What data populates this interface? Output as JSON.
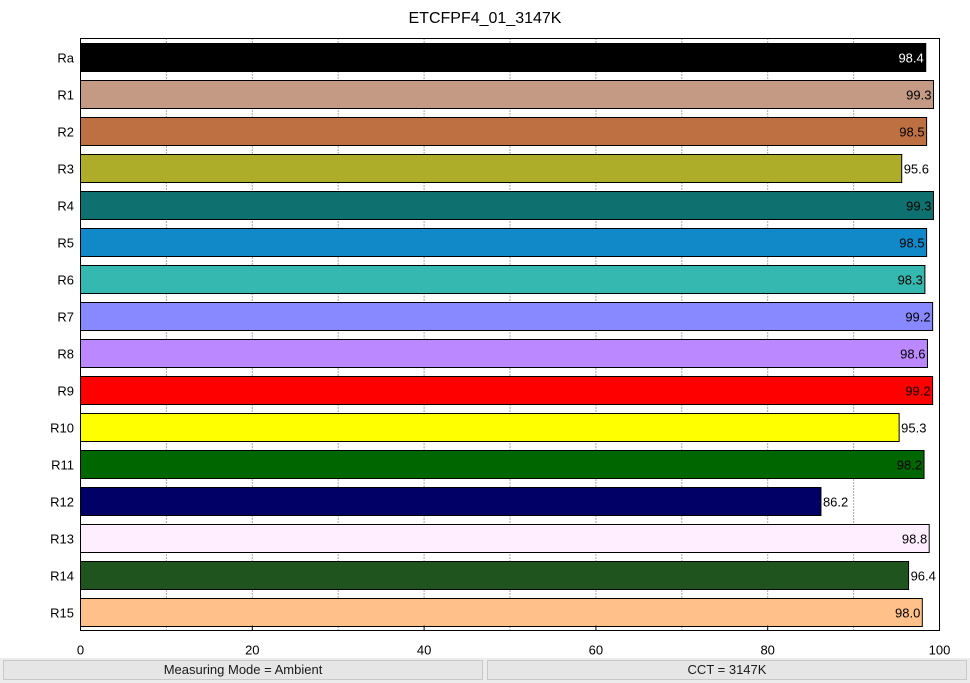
{
  "chart_data": {
    "type": "bar",
    "orientation": "horizontal",
    "title": "ETCFPF4_01_3147K",
    "xlabel": "",
    "ylabel": "",
    "xlim": [
      0,
      100
    ],
    "x_ticks": [
      0,
      20,
      40,
      60,
      80,
      100
    ],
    "grid": true,
    "categories": [
      "Ra",
      "R1",
      "R2",
      "R3",
      "R4",
      "R5",
      "R6",
      "R7",
      "R8",
      "R9",
      "R10",
      "R11",
      "R12",
      "R13",
      "R14",
      "R15"
    ],
    "values": [
      98.4,
      99.3,
      98.5,
      95.6,
      99.3,
      98.5,
      98.3,
      99.2,
      98.6,
      99.2,
      95.3,
      98.2,
      86.2,
      98.8,
      96.4,
      98.0
    ],
    "value_labels": [
      "98.4",
      "99.3",
      "98.5",
      "95.6",
      "99.3",
      "98.5",
      "98.3",
      "99.2",
      "98.6",
      "99.2",
      "95.3",
      "98.2",
      "86.2",
      "98.8",
      "96.4",
      "98.0"
    ],
    "colors": [
      "#000000",
      "#c49a85",
      "#bf7042",
      "#adad2a",
      "#0f7070",
      "#1188c8",
      "#34b8b0",
      "#8888ff",
      "#bb88ff",
      "#ff0000",
      "#ffff00",
      "#006600",
      "#000066",
      "#ffeeff",
      "#1f541f",
      "#ffc08a"
    ],
    "label_colors": [
      "#ffffff",
      "#000000",
      "#000000",
      "#000000",
      "#000000",
      "#000000",
      "#000000",
      "#000000",
      "#000000",
      "#000000",
      "#000000",
      "#000000",
      "#000000",
      "#000000",
      "#000000",
      "#000000"
    ]
  },
  "status_bar": {
    "left": "Measuring Mode = Ambient",
    "right": "CCT = 3147K"
  }
}
